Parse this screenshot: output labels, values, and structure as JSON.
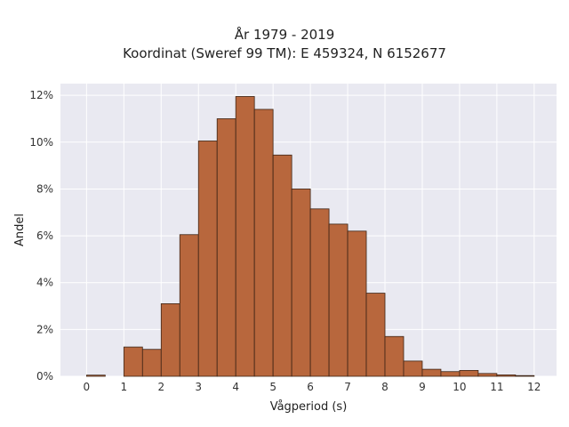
{
  "chart_data": {
    "type": "bar",
    "title": "År 1979 - 2019",
    "subtitle": "Koordinat (Sweref 99 TM): E 459324, N 6152677",
    "xlabel": "Vågperiod (s)",
    "ylabel": "Andel",
    "xlim": [
      -0.7,
      12.6
    ],
    "ylim": [
      0,
      12.5
    ],
    "xticks": [
      0,
      1,
      2,
      3,
      4,
      5,
      6,
      7,
      8,
      9,
      10,
      11,
      12
    ],
    "yticks": [
      0,
      2,
      4,
      6,
      8,
      10,
      12
    ],
    "ytick_labels": [
      "0%",
      "2%",
      "4%",
      "6%",
      "8%",
      "10%",
      "12%"
    ],
    "grid": true,
    "bar_width": 0.5,
    "bins": [
      {
        "start": 0.0,
        "value": 0.05
      },
      {
        "start": 1.0,
        "value": 1.25
      },
      {
        "start": 1.5,
        "value": 1.15
      },
      {
        "start": 2.0,
        "value": 3.1
      },
      {
        "start": 2.5,
        "value": 6.05
      },
      {
        "start": 3.0,
        "value": 10.05
      },
      {
        "start": 3.5,
        "value": 11.0
      },
      {
        "start": 4.0,
        "value": 11.95
      },
      {
        "start": 4.5,
        "value": 11.4
      },
      {
        "start": 5.0,
        "value": 9.45
      },
      {
        "start": 5.5,
        "value": 8.0
      },
      {
        "start": 6.0,
        "value": 7.15
      },
      {
        "start": 6.5,
        "value": 6.5
      },
      {
        "start": 7.0,
        "value": 6.2
      },
      {
        "start": 7.5,
        "value": 3.55
      },
      {
        "start": 8.0,
        "value": 1.7
      },
      {
        "start": 8.5,
        "value": 0.65
      },
      {
        "start": 9.0,
        "value": 0.3
      },
      {
        "start": 9.5,
        "value": 0.2
      },
      {
        "start": 10.0,
        "value": 0.25
      },
      {
        "start": 10.5,
        "value": 0.12
      },
      {
        "start": 11.0,
        "value": 0.06
      },
      {
        "start": 11.5,
        "value": 0.03
      }
    ],
    "colors": {
      "bar_fill": "#b8673d",
      "bar_edge": "#3d2415",
      "plot_bg": "#e9e9f1",
      "grid": "#ffffff"
    }
  }
}
